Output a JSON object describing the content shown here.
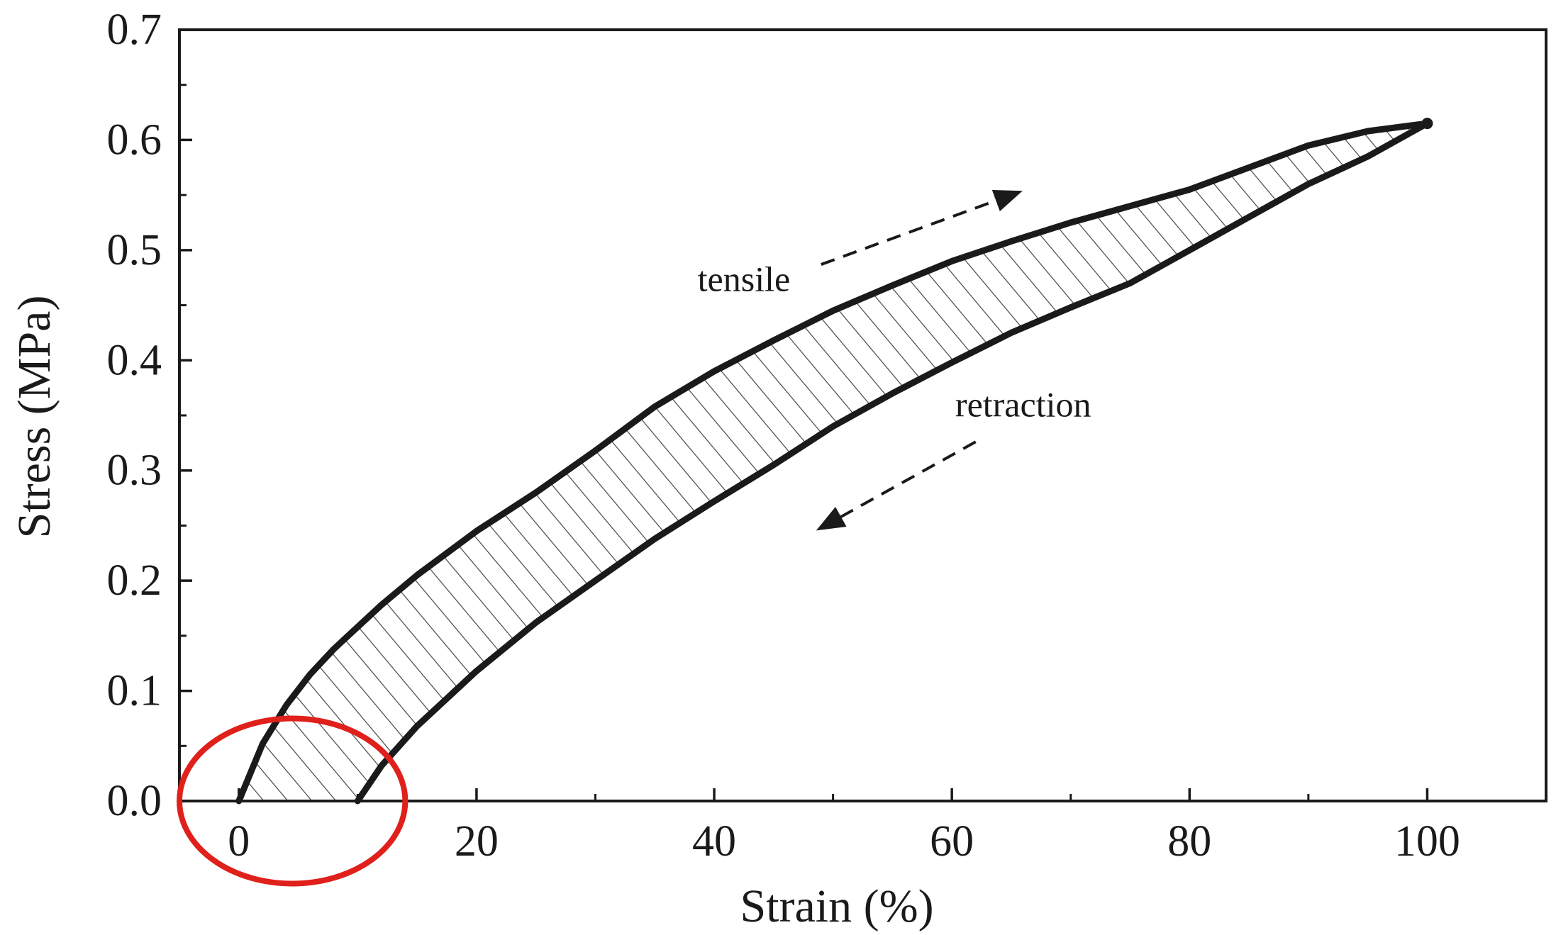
{
  "chart_data": {
    "type": "line",
    "title": "",
    "xlabel": "Strain (%)",
    "ylabel": "Stress (MPa)",
    "xlim": [
      -5,
      110
    ],
    "ylim": [
      0,
      0.7
    ],
    "x_ticks": [
      0,
      20,
      40,
      60,
      80,
      100
    ],
    "x_tick_labels": [
      "0",
      "20",
      "40",
      "60",
      "80",
      "100"
    ],
    "y_ticks": [
      0.0,
      0.1,
      0.2,
      0.3,
      0.4,
      0.5,
      0.6,
      0.7
    ],
    "y_tick_labels": [
      "0.0",
      "0.1",
      "0.2",
      "0.3",
      "0.4",
      "0.5",
      "0.6",
      "0.7"
    ],
    "grid": false,
    "hysteresis_area": "hatched",
    "series": [
      {
        "name": "tensile",
        "x": [
          0,
          2,
          4,
          6,
          8,
          10,
          12,
          15,
          20,
          25,
          30,
          35,
          40,
          45,
          50,
          55,
          60,
          65,
          70,
          75,
          80,
          85,
          90,
          95,
          100
        ],
        "y": [
          0.0,
          0.052,
          0.087,
          0.115,
          0.138,
          0.158,
          0.178,
          0.205,
          0.245,
          0.28,
          0.318,
          0.358,
          0.39,
          0.418,
          0.445,
          0.468,
          0.49,
          0.508,
          0.525,
          0.54,
          0.555,
          0.575,
          0.595,
          0.608,
          0.615
        ]
      },
      {
        "name": "retraction",
        "x": [
          100,
          95,
          90,
          85,
          80,
          75,
          70,
          65,
          60,
          55,
          50,
          45,
          40,
          35,
          30,
          25,
          20,
          15,
          12,
          10
        ],
        "y": [
          0.615,
          0.585,
          0.56,
          0.53,
          0.5,
          0.47,
          0.448,
          0.425,
          0.398,
          0.37,
          0.34,
          0.305,
          0.272,
          0.238,
          0.2,
          0.162,
          0.118,
          0.068,
          0.032,
          0.0
        ]
      }
    ],
    "annotations": [
      {
        "name": "tensile-label",
        "text": "tensile",
        "x": 42.5,
        "y": 0.463
      },
      {
        "name": "retraction-label",
        "text": "retraction",
        "x": 66,
        "y": 0.349
      }
    ],
    "arrows": [
      {
        "name": "tensile-arrow",
        "from": [
          49,
          0.487
        ],
        "to": [
          65.5,
          0.552
        ],
        "style": "dashed"
      },
      {
        "name": "retraction-arrow",
        "from": [
          62,
          0.326
        ],
        "to": [
          49,
          0.248
        ],
        "style": "dashed"
      }
    ],
    "highlight": {
      "shape": "ellipse",
      "color": "#e0201b",
      "center": [
        4.5,
        0.0
      ],
      "radii": [
        9.5,
        0.055
      ]
    },
    "colors": {
      "line": "#1a1a1a",
      "hatch": "#444444",
      "highlight": "#e0201b"
    }
  }
}
